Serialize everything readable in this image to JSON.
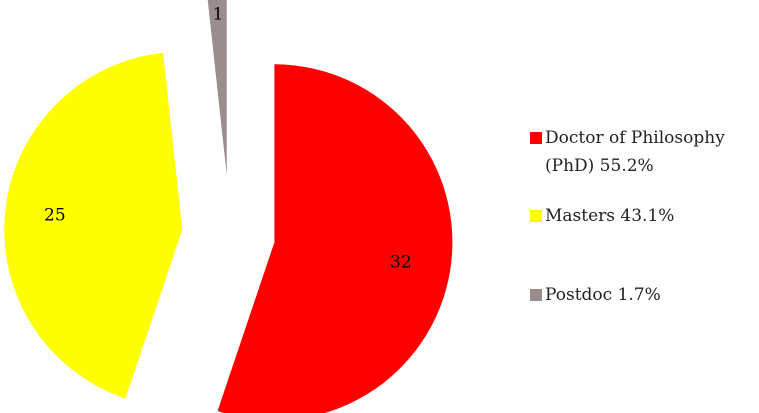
{
  "chart_data": {
    "type": "pie",
    "exploded": true,
    "title": "",
    "categories": [
      "Doctor of Philosophy (PhD)",
      "Masters",
      "Postdoc"
    ],
    "values": [
      32,
      25,
      1
    ],
    "percent_labels": [
      "55.2%",
      "43.1%",
      "1.7%"
    ],
    "colors": [
      "#ff0000",
      "#ffff00",
      "#9a8d8d"
    ],
    "legend": [
      {
        "label": "Doctor of Philosophy (PhD) 55.2%"
      },
      {
        "label": "Masters 43.1%"
      },
      {
        "label": "Postdoc 1.7%"
      }
    ],
    "legend_placement": "right",
    "data_labels": [
      "32",
      "25",
      "1"
    ]
  }
}
